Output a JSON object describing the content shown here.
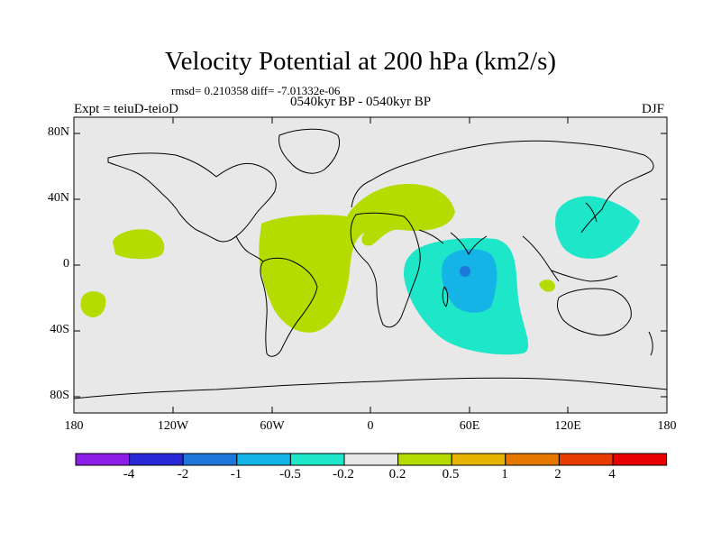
{
  "title": "Velocity Potential at 200 hPa (km2/s)",
  "stats": "rmsd= 0.210358 diff= -7.01332e-06",
  "experiment": "Expt = teiuD-teioD",
  "period": "0540kyr BP - 0540kyr BP",
  "season": "DJF",
  "lat_labels": [
    "80N",
    "40N",
    "0",
    "40S",
    "80S"
  ],
  "lon_labels": [
    "180",
    "120W",
    "60W",
    "0",
    "60E",
    "120E",
    "180"
  ],
  "colorbar": {
    "labels": [
      "-4",
      "-2",
      "-1",
      "-0.5",
      "-0.2",
      "0.2",
      "0.5",
      "1",
      "2",
      "4"
    ],
    "colors": [
      "#8a1ee6",
      "#2828d6",
      "#1e78dc",
      "#14b4e6",
      "#1ee6c8",
      "#e8e8e8",
      "#b4dc00",
      "#e6b400",
      "#e67800",
      "#e63c00",
      "#e60000"
    ]
  },
  "map_colors": {
    "background": "#e8e8e8",
    "positive_small": "#b4dc00",
    "negative_small": "#1ee6c8",
    "negative_medium": "#14b4e6",
    "negative_large": "#1e78dc"
  }
}
